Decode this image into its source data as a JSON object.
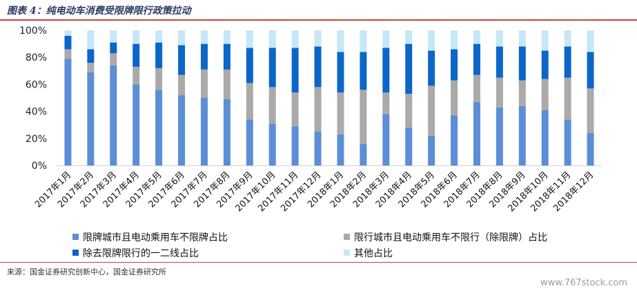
{
  "header": {
    "title": "图表 4：纯电动车消费受限牌限行政策拉动"
  },
  "footer": {
    "source": "来源：国金证券研究创新中心，国金证券研究所"
  },
  "watermark": "www.767stock.com",
  "colors": {
    "series1": "#5b8ed6",
    "series2": "#aaaaaa",
    "series3": "#0b66c8",
    "series4": "#c6e7f7",
    "title": "#2a3a63",
    "rule": "#c1463d"
  },
  "chart_data": {
    "type": "bar",
    "stacked": true,
    "percent": true,
    "title": "",
    "xlabel": "",
    "ylabel": "",
    "ylim": [
      0,
      100
    ],
    "yticks": [
      "0%",
      "20%",
      "40%",
      "60%",
      "80%",
      "100%"
    ],
    "grid": false,
    "legend_position": "bottom",
    "categories": [
      "2017年1月",
      "2017年2月",
      "2017年3月",
      "2017年4月",
      "2017年5月",
      "2017年6月",
      "2017年7月",
      "2017年8月",
      "2017年9月",
      "2017年10月",
      "2017年11月",
      "2017年12月",
      "2018年1月",
      "2018年2月",
      "2018年3月",
      "2018年4月",
      "2018年5月",
      "2018年6月",
      "2018年7月",
      "2018年8月",
      "2018年9月",
      "2018年10月",
      "2018年11月",
      "2018年12月"
    ],
    "series": [
      {
        "name": "限牌城市且电动乘用车不限牌占比",
        "values": [
          79,
          69,
          74,
          60,
          56,
          52,
          50,
          49,
          34,
          31,
          29,
          25,
          23,
          16,
          38,
          28,
          22,
          37,
          47,
          43,
          44,
          41,
          34,
          24
        ]
      },
      {
        "name": "限行城市且电动乘用车不限行（除限牌）占比",
        "values": [
          7,
          7,
          9,
          13,
          16,
          15,
          21,
          22,
          27,
          27,
          25,
          33,
          31,
          40,
          16,
          25,
          37,
          26,
          20,
          22,
          19,
          23,
          31,
          33
        ]
      },
      {
        "name": "除去限牌限行的一二线占比",
        "values": [
          10,
          10,
          8,
          17,
          19,
          22,
          19,
          19,
          26,
          29,
          33,
          30,
          30,
          28,
          33,
          37,
          26,
          23,
          23,
          23,
          25,
          21,
          23,
          27
        ]
      },
      {
        "name": "其他占比",
        "values": [
          4,
          14,
          9,
          10,
          9,
          11,
          10,
          10,
          13,
          13,
          13,
          12,
          16,
          16,
          13,
          10,
          15,
          14,
          10,
          12,
          12,
          15,
          12,
          16
        ]
      }
    ]
  }
}
